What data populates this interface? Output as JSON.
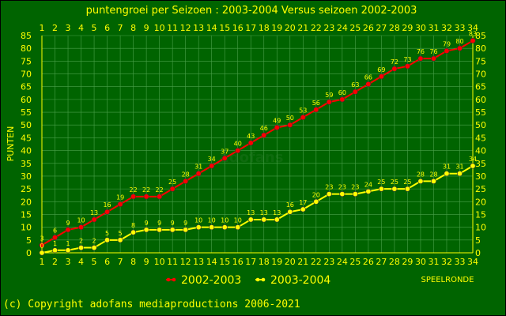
{
  "colors": {
    "background": "#006400",
    "frame": "#000000",
    "text_yellow": "#ffff00",
    "grid": "#4aa04a",
    "series_2002": "#ff0000",
    "series_2003": "#ffff00"
  },
  "chart_data": {
    "type": "line",
    "title": "puntengroei per Seizoen : 2003-2004 Versus seizoen 2002-2003",
    "ylabel": "PUNTEN",
    "xlabel": "SPEELRONDE",
    "ylim": [
      0,
      85
    ],
    "yticks": [
      0,
      5,
      10,
      15,
      20,
      25,
      30,
      35,
      40,
      45,
      50,
      55,
      60,
      65,
      70,
      75,
      80,
      85
    ],
    "x": [
      1,
      2,
      3,
      4,
      5,
      6,
      7,
      8,
      9,
      10,
      11,
      12,
      13,
      14,
      15,
      16,
      17,
      18,
      19,
      20,
      21,
      22,
      23,
      24,
      25,
      26,
      27,
      28,
      29,
      30,
      31,
      32,
      33,
      34
    ],
    "grid": true,
    "legend": "bottom",
    "watermark": "adofans",
    "series": [
      {
        "name": "2002-2003",
        "color": "#ff0000",
        "values": [
          3,
          6,
          9,
          10,
          13,
          16,
          19,
          22,
          22,
          22,
          25,
          28,
          31,
          34,
          37,
          40,
          43,
          46,
          49,
          50,
          53,
          56,
          59,
          60,
          63,
          66,
          69,
          72,
          73,
          76,
          76,
          79,
          80,
          83
        ]
      },
      {
        "name": "2003-2004",
        "color": "#ffff00",
        "values": [
          0,
          1,
          1,
          2,
          2,
          5,
          5,
          8,
          9,
          9,
          9,
          9,
          10,
          10,
          10,
          10,
          13,
          13,
          13,
          16,
          17,
          20,
          23,
          23,
          23,
          24,
          25,
          25,
          25,
          28,
          28,
          31,
          31,
          34
        ]
      }
    ]
  },
  "footer": {
    "copyright": "(c) Copyright adofans mediaproductions 2006-2021"
  }
}
